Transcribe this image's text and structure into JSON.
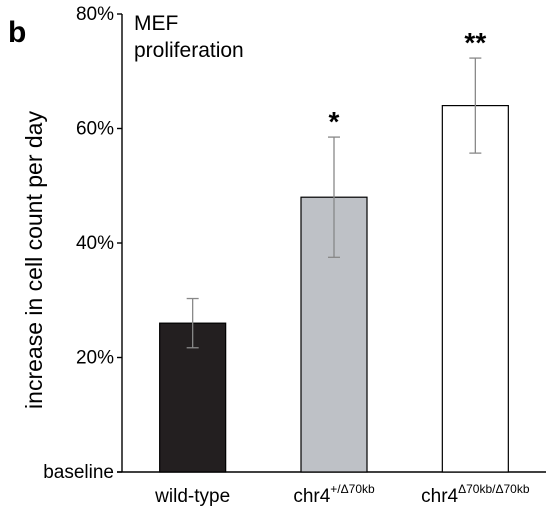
{
  "panel_label": "b",
  "chart_data": {
    "type": "bar",
    "title_lines": [
      "MEF",
      "proliferation"
    ],
    "ylabel": "increase in cell count per day",
    "xlabel": "",
    "ylim": [
      0,
      80
    ],
    "yticks": [
      {
        "value": 0,
        "label": "baseline"
      },
      {
        "value": 20,
        "label": "20%"
      },
      {
        "value": 40,
        "label": "40%"
      },
      {
        "value": 60,
        "label": "60%"
      },
      {
        "value": 80,
        "label": "80%"
      }
    ],
    "categories": [
      {
        "base": "wild-type",
        "sup": ""
      },
      {
        "base": "chr4",
        "sup": "+/Δ70kb"
      },
      {
        "base": "chr4",
        "sup": "Δ70kb/Δ70kb"
      }
    ],
    "values": [
      26,
      48,
      64
    ],
    "errors": [
      4.3,
      10.5,
      8.3
    ],
    "significance": [
      "",
      "*",
      "**"
    ],
    "colors": [
      "#231f20",
      "#bec1c6",
      "#ffffff"
    ],
    "grid": false
  }
}
